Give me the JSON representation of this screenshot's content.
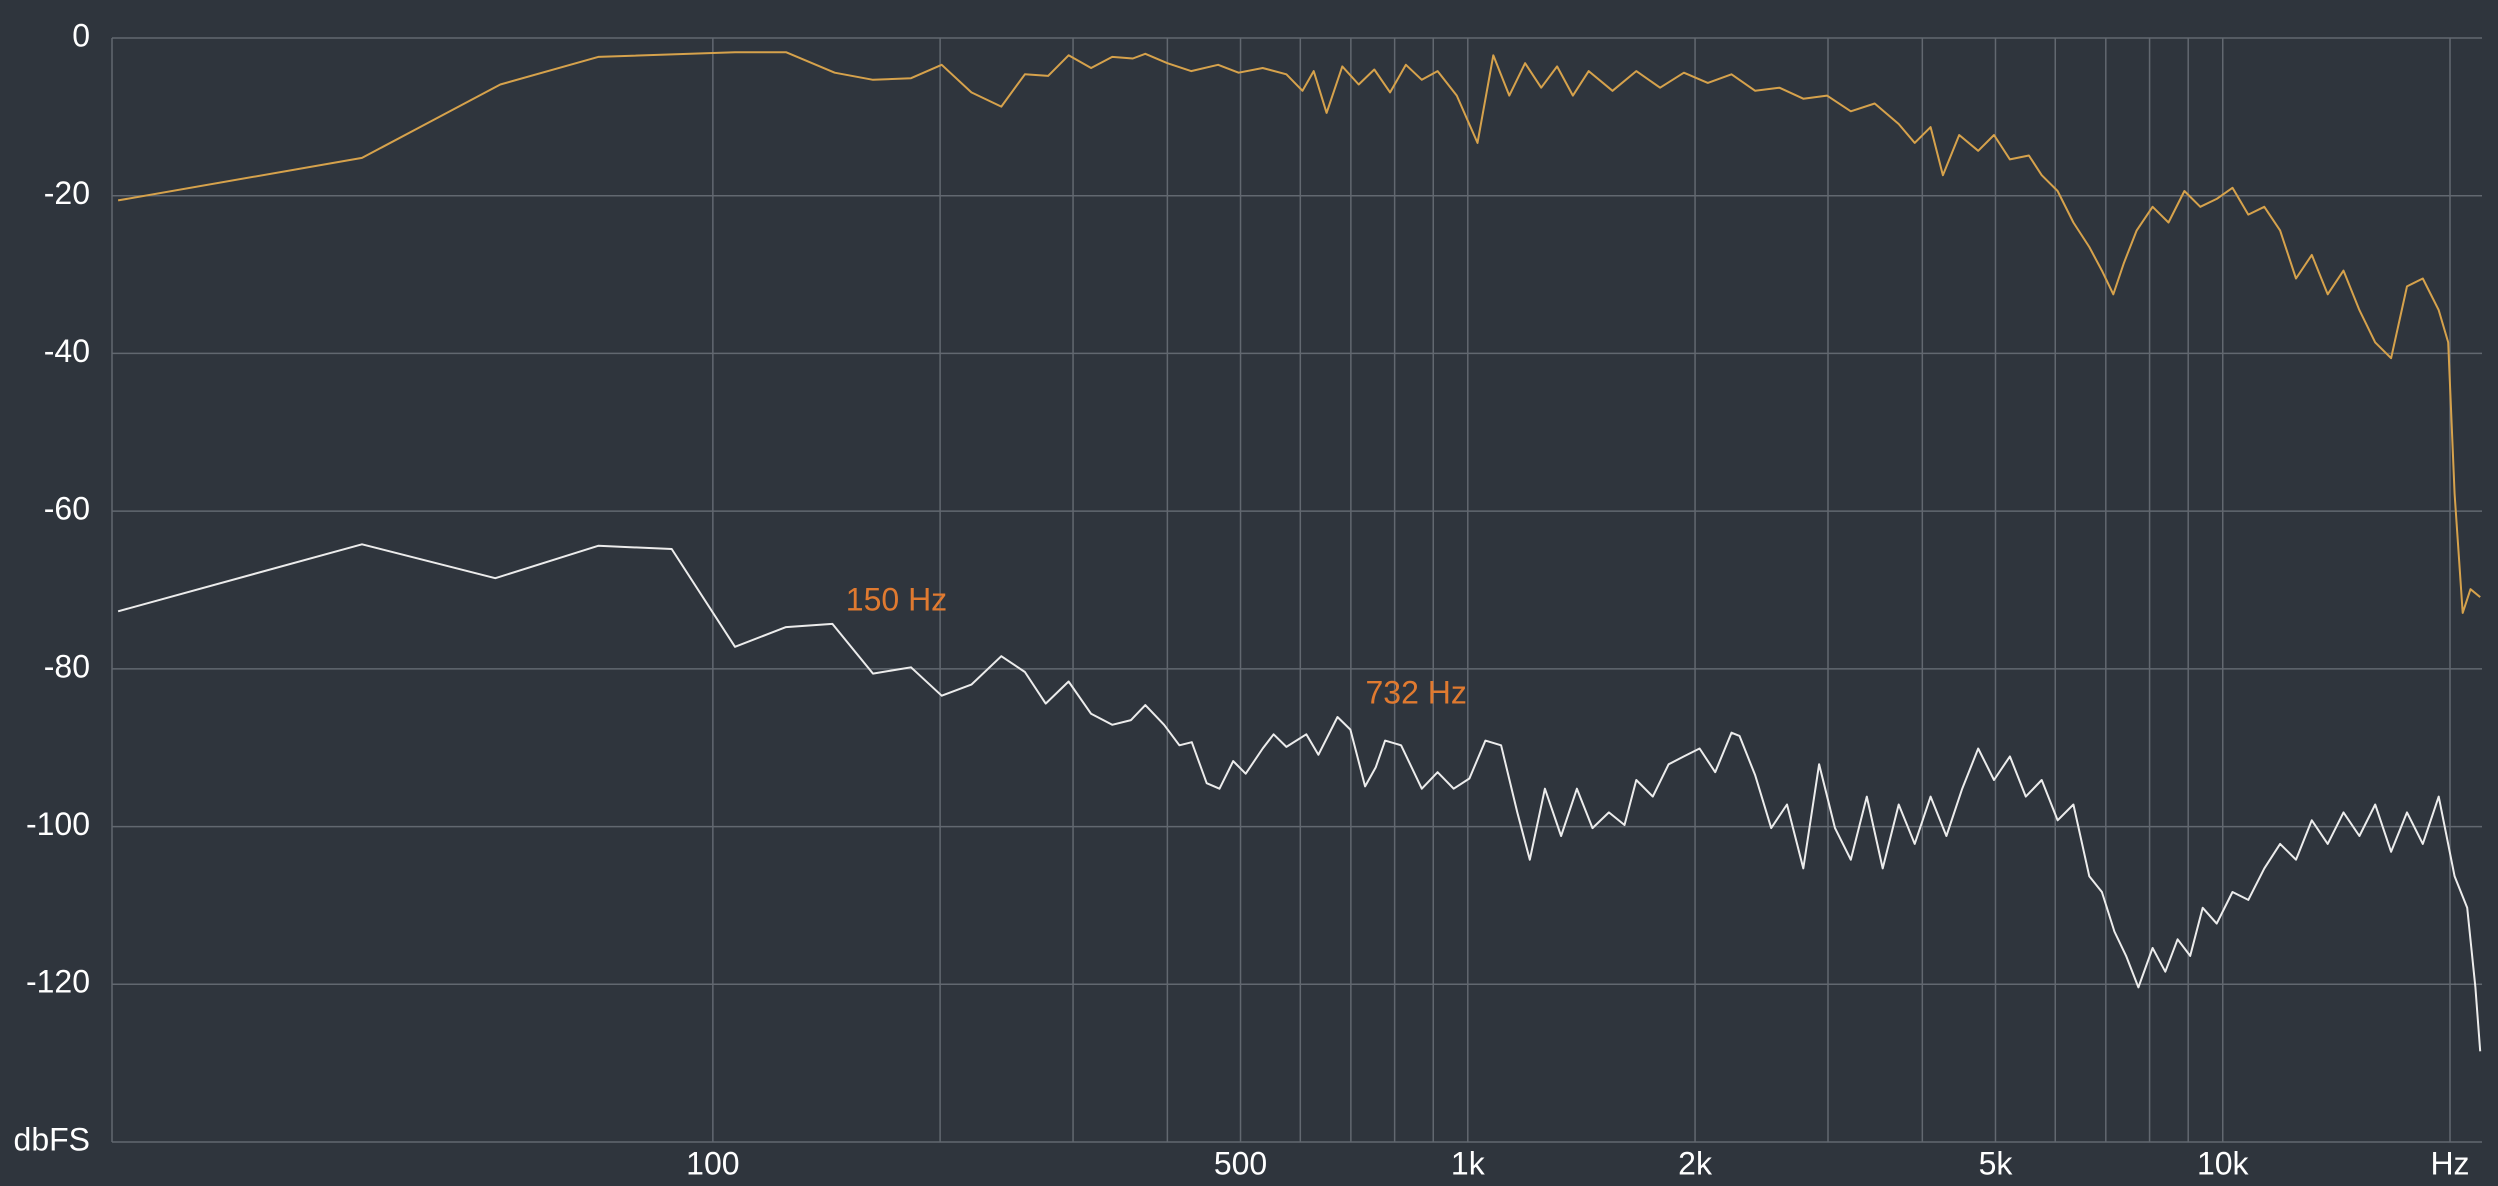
{
  "chart_data": {
    "type": "line",
    "xscale": "log",
    "xlim": [
      16,
      22050
    ],
    "ylim": [
      -140,
      0
    ],
    "xticks": [
      100,
      500,
      {
        "value": 1000,
        "label": "1k"
      },
      {
        "value": 2000,
        "label": "2k"
      },
      {
        "value": 5000,
        "label": "5k"
      },
      {
        "value": 10000,
        "label": "10k"
      },
      {
        "value": 20000,
        "label": "Hz"
      }
    ],
    "xgrid": [
      200,
      300,
      400,
      600,
      700,
      800,
      900,
      3000,
      4000,
      6000,
      7000,
      8000,
      9000
    ],
    "yticks": [
      0,
      -20,
      -40,
      -60,
      -80,
      -100,
      -120,
      {
        "value": -140,
        "label": "dbFS"
      }
    ],
    "grid": true,
    "series": [
      {
        "color": "#d6a24c",
        "x": [
          16.3,
          34.3,
          52.3,
          70.5,
          107,
          125,
          145,
          163,
          183,
          201,
          220,
          241,
          259,
          278,
          296,
          317,
          338,
          360,
          374,
          400,
          430,
          467,
          497,
          535,
          575,
          604,
          625,
          650,
          682,
          717,
          752,
          789,
          828,
          869,
          912,
          967,
          1030,
          1081,
          1135,
          1191,
          1251,
          1313,
          1378,
          1446,
          1555,
          1672,
          1798,
          1933,
          2079,
          2235,
          2403,
          2587,
          2782,
          2991,
          3216,
          3459,
          3722,
          3908,
          4102,
          4259,
          4476,
          4743,
          4978,
          5225,
          5537,
          5757,
          6043,
          6342,
          6657,
          6918,
          7161,
          7400,
          7691,
          8074,
          8474,
          8895,
          9339,
          9818,
          10301,
          10812,
          11350,
          11912,
          12503,
          13120,
          13772,
          14454,
          15171,
          15922,
          16712,
          17539,
          18408,
          19320,
          19890,
          20280,
          20790,
          21290,
          21930
        ],
        "values": [
          -20.6,
          -15.2,
          -5.9,
          -2.4,
          -1.8,
          -1.8,
          -4.4,
          -5.3,
          -5.1,
          -3.4,
          -6.9,
          -8.7,
          -4.6,
          -4.8,
          -2.2,
          -3.8,
          -2.4,
          -2.6,
          -2.0,
          -3.2,
          -4.2,
          -3.4,
          -4.4,
          -3.8,
          -4.6,
          -6.7,
          -4.2,
          -9.5,
          -3.6,
          -5.9,
          -4.0,
          -6.9,
          -3.4,
          -5.3,
          -4.2,
          -7.3,
          -13.3,
          -2.2,
          -7.3,
          -3.2,
          -6.3,
          -3.6,
          -7.3,
          -4.2,
          -6.7,
          -4.2,
          -6.3,
          -4.4,
          -5.7,
          -4.6,
          -6.7,
          -6.3,
          -7.7,
          -7.3,
          -9.3,
          -8.3,
          -10.9,
          -13.3,
          -11.3,
          -17.4,
          -12.3,
          -14.3,
          -12.3,
          -15.4,
          -14.9,
          -17.4,
          -19.4,
          -23.4,
          -26.5,
          -29.5,
          -32.5,
          -28.5,
          -24.4,
          -21.4,
          -23.4,
          -19.4,
          -21.4,
          -20.4,
          -19.0,
          -22.4,
          -21.4,
          -24.4,
          -30.5,
          -27.5,
          -32.5,
          -29.5,
          -34.5,
          -38.6,
          -40.6,
          -31.5,
          -30.5,
          -34.5,
          -38.6,
          -57.8,
          -72.9,
          -69.9,
          -70.9
        ]
      },
      {
        "color": "#ececec",
        "x": [
          16.3,
          34.3,
          51.5,
          70.5,
          88.2,
          107,
          125,
          144,
          163,
          183,
          201,
          220,
          241,
          259,
          276,
          296,
          317,
          338,
          358,
          374,
          396,
          415,
          431,
          451,
          469,
          489,
          508,
          535,
          553,
          575,
          611,
          634,
          672,
          699,
          731,
          755,
          777,
          816,
          869,
          912,
          958,
          1005,
          1055,
          1107,
          1163,
          1208,
          1265,
          1329,
          1395,
          1463,
          1538,
          1613,
          1672,
          1758,
          1845,
          1933,
          2028,
          2127,
          2235,
          2290,
          2403,
          2523,
          2647,
          2782,
          2920,
          3065,
          3216,
          3377,
          3545,
          3722,
          3908,
          4102,
          4305,
          4517,
          4743,
          4978,
          5225,
          5484,
          5757,
          6043,
          6342,
          6657,
          6918,
          7187,
          7448,
          7732,
          8074,
          8392,
          8714,
          9055,
          9408,
          9818,
          10301,
          10812,
          11350,
          11912,
          12503,
          13120,
          13772,
          14454,
          15171,
          15922,
          16712,
          17539,
          18408,
          19320,
          20280,
          21080,
          21610,
          21930
        ],
        "values": [
          -72.7,
          -64.2,
          -68.5,
          -64.4,
          -64.8,
          -77.2,
          -74.7,
          -74.3,
          -80.6,
          -79.8,
          -83.4,
          -82.0,
          -78.4,
          -80.4,
          -84.4,
          -81.6,
          -85.7,
          -87.1,
          -86.5,
          -84.6,
          -87.1,
          -89.7,
          -89.3,
          -94.5,
          -95.2,
          -91.7,
          -93.3,
          -90.1,
          -88.3,
          -89.9,
          -88.3,
          -90.9,
          -86.1,
          -87.7,
          -94.9,
          -92.5,
          -89.1,
          -89.7,
          -95.2,
          -93.1,
          -95.2,
          -93.9,
          -89.1,
          -89.7,
          -98.2,
          -104.2,
          -95.2,
          -101.2,
          -95.2,
          -100.2,
          -98.2,
          -99.8,
          -94.1,
          -96.2,
          -92.1,
          -91.1,
          -90.1,
          -93.1,
          -88.1,
          -88.5,
          -93.5,
          -100.2,
          -97.2,
          -105.3,
          -92.1,
          -100.2,
          -104.2,
          -96.2,
          -105.3,
          -97.2,
          -102.2,
          -96.2,
          -101.2,
          -95.2,
          -90.1,
          -94.1,
          -91.1,
          -96.2,
          -94.1,
          -99.2,
          -97.2,
          -106.3,
          -108.3,
          -113.3,
          -116.4,
          -120.4,
          -115.4,
          -118.4,
          -114.3,
          -116.4,
          -110.3,
          -112.3,
          -108.3,
          -109.3,
          -105.3,
          -102.2,
          -104.2,
          -99.2,
          -102.2,
          -98.2,
          -101.2,
          -97.2,
          -103.2,
          -98.2,
          -102.2,
          -96.2,
          -106.3,
          -110.3,
          -120.4,
          -128.5
        ]
      }
    ],
    "annotations": [
      {
        "text": "150 Hz",
        "x": 150,
        "y": -74.3,
        "color": "#e07a30"
      },
      {
        "text": "732 Hz",
        "x": 732,
        "y": -86.1,
        "color": "#e07a30"
      }
    ]
  }
}
